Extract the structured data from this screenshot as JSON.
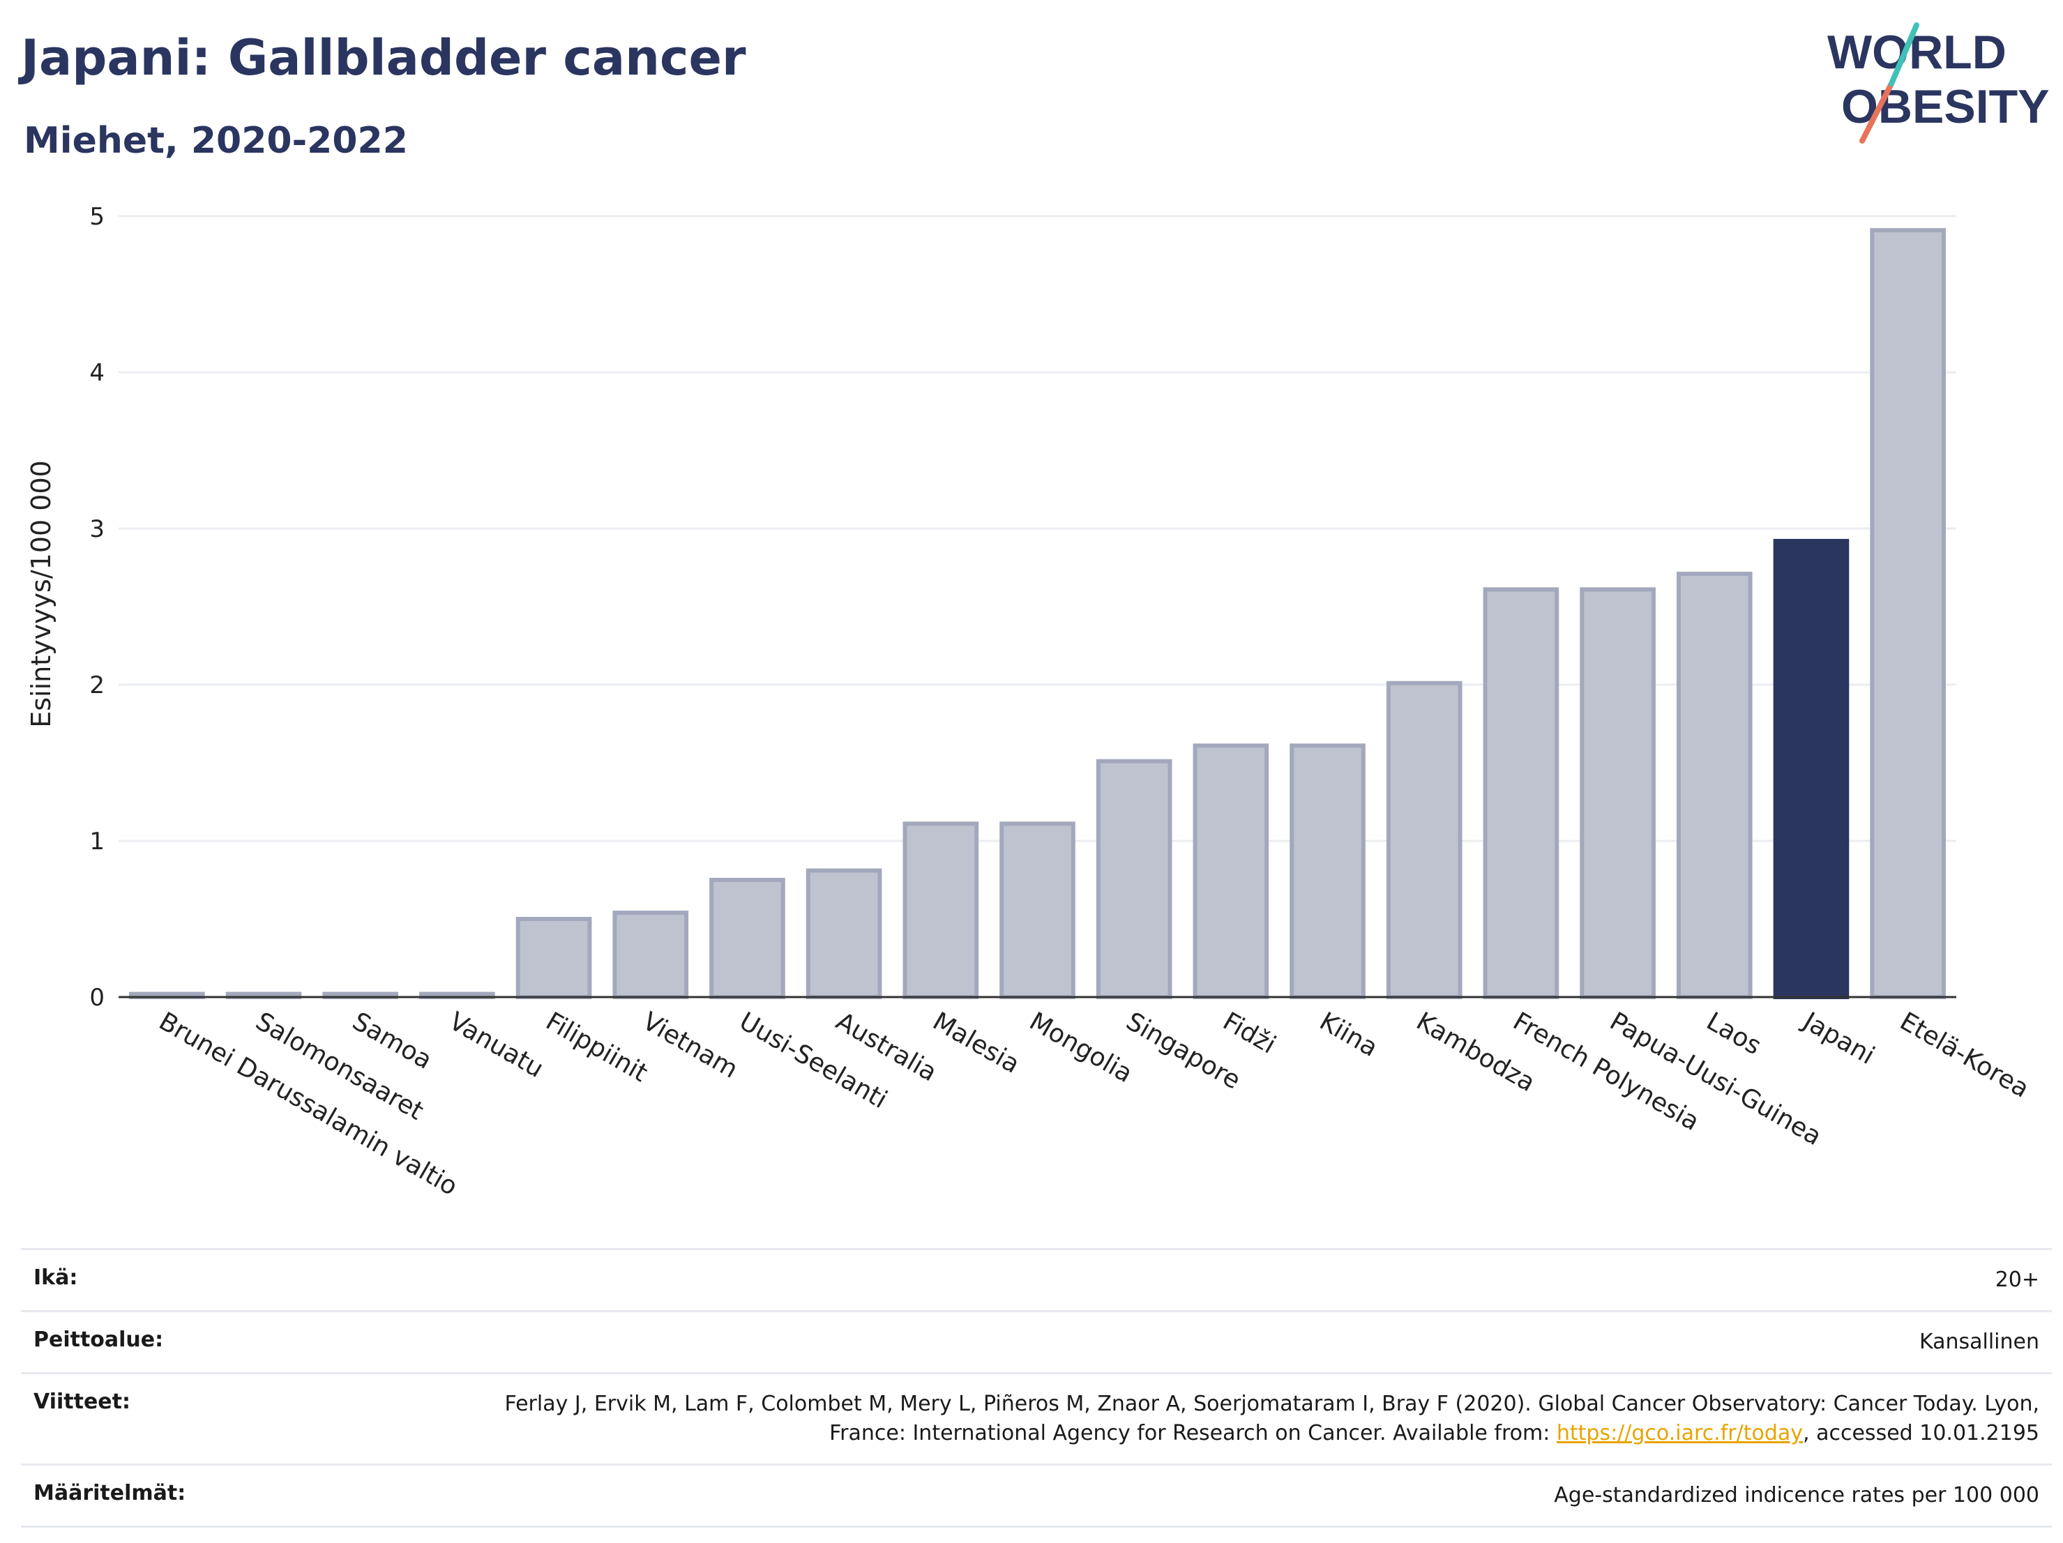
{
  "header": {
    "title": "Japani: Gallbladder cancer",
    "subtitle": "Miehet, 2020-2022"
  },
  "logo": {
    "line1": "WORLD",
    "line2": "OBESITY"
  },
  "chart_data": {
    "type": "bar",
    "ylabel": "Esiintyvyys/100 000",
    "ylim": [
      0,
      5
    ],
    "yticks": [
      0,
      1,
      2,
      3,
      4,
      5
    ],
    "grid": true,
    "categories": [
      "Brunei Darussalamin valtio",
      "Salomonsaaret",
      "Samoa",
      "Vanuatu",
      "Filippiinit",
      "Vietnam",
      "Uusi-Seelanti",
      "Australia",
      "Malesia",
      "Mongolia",
      "Singapore",
      "Fidži",
      "Kiina",
      "Kambodza",
      "French Polynesia",
      "Papua-Uusi-Guinea",
      "Laos",
      "Japani",
      "Etelä-Korea"
    ],
    "values": [
      0.02,
      0.02,
      0.02,
      0.02,
      0.5,
      0.54,
      0.75,
      0.81,
      1.11,
      1.11,
      1.51,
      1.61,
      1.61,
      2.01,
      2.61,
      2.61,
      2.71,
      2.92,
      4.91
    ],
    "highlight": "Japani",
    "colors": {
      "bar": "#bfc3d0",
      "bar_border": "#a3a8bd",
      "highlight": "#2a3560"
    }
  },
  "meta": [
    {
      "key": "Ikä:",
      "value": "20+"
    },
    {
      "key": "Peittoalue:",
      "value": "Kansallinen"
    },
    {
      "key": "Viitteet:",
      "value_before": "Ferlay J, Ervik M, Lam F, Colombet M, Mery L, Piñeros M, Znaor A, Soerjomataram I, Bray F (2020). Global Cancer Observatory: Cancer Today. Lyon, France: International Agency for Research on Cancer. Available from: ",
      "link": "https://gco.iarc.fr/today",
      "value_after": ", accessed 10.01.2195"
    },
    {
      "key": "Määritelmät:",
      "value": "Age-standardized indicence rates per 100 000"
    }
  ]
}
